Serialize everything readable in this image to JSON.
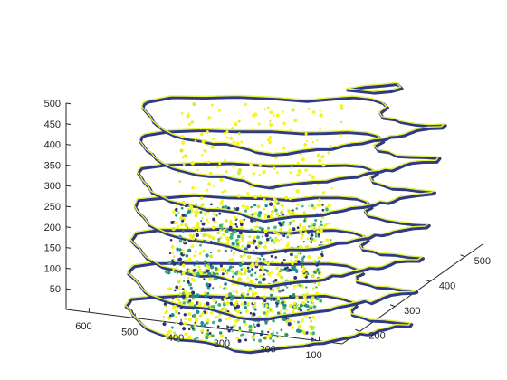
{
  "chart_data": {
    "type": "scatter",
    "subtype": "3d-stacked-slices",
    "title": "",
    "xlabel": "",
    "ylabel": "",
    "zlabel": "",
    "grid": false,
    "x_axis": {
      "ticks": [
        100,
        200,
        300,
        400,
        500,
        600
      ],
      "range": [
        50,
        650
      ]
    },
    "y_axis": {
      "ticks": [
        200,
        300,
        400,
        500
      ],
      "range": [
        150,
        550
      ]
    },
    "z_axis": {
      "ticks": [
        50,
        100,
        150,
        200,
        250,
        300,
        350,
        400,
        450,
        500
      ],
      "range": [
        0,
        500
      ]
    },
    "colormap": {
      "name": "viridis",
      "low_color": "#30307e",
      "mid_color": "#20908c",
      "high_color": "#f5f519"
    },
    "slices": [
      {
        "z": 60,
        "point_density": "high"
      },
      {
        "z": 140,
        "point_density": "high"
      },
      {
        "z": 220,
        "point_density": "high"
      },
      {
        "z": 300,
        "point_density": "high"
      },
      {
        "z": 380,
        "point_density": "low"
      },
      {
        "z": 460,
        "point_density": "low"
      },
      {
        "z": 540,
        "point_density": "low"
      }
    ]
  }
}
